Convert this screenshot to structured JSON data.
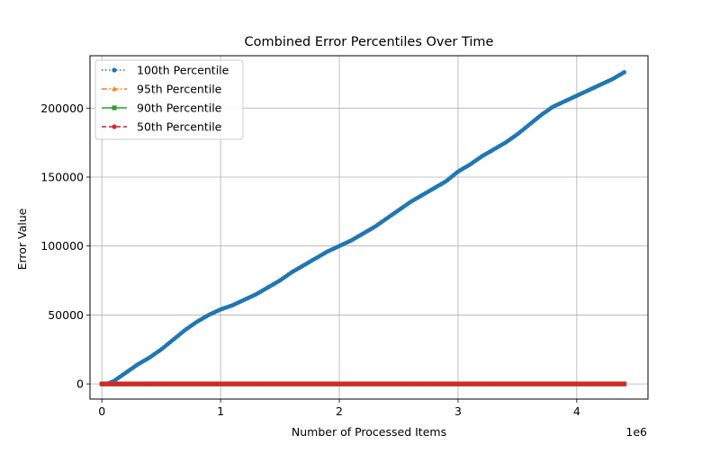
{
  "chart_data": {
    "type": "line",
    "title": "Combined Error Percentiles Over Time",
    "xlabel": "Number of Processed Items",
    "ylabel": "Error Value",
    "x_offset_label": "1e6",
    "xlim": [
      -0.1,
      4.6
    ],
    "ylim": [
      -11000,
      238000
    ],
    "xticks": [
      0,
      1,
      2,
      3,
      4
    ],
    "xtick_labels": [
      "0",
      "1",
      "2",
      "3",
      "4"
    ],
    "yticks": [
      0,
      50000,
      100000,
      150000,
      200000
    ],
    "ytick_labels": [
      "0",
      "50000",
      "100000",
      "150000",
      "200000"
    ],
    "grid": true,
    "legend_position": "top-left",
    "x_unit_multiplier": 1000000,
    "series": [
      {
        "name": "100th Percentile",
        "color": "#1f77b4",
        "linestyle": "dotted",
        "marker": "point",
        "x": [
          0.0,
          0.05,
          0.1,
          0.2,
          0.3,
          0.4,
          0.5,
          0.6,
          0.7,
          0.8,
          0.9,
          1.0,
          1.1,
          1.2,
          1.3,
          1.4,
          1.5,
          1.6,
          1.7,
          1.8,
          1.9,
          2.0,
          2.1,
          2.2,
          2.3,
          2.4,
          2.5,
          2.6,
          2.7,
          2.8,
          2.9,
          3.0,
          3.1,
          3.2,
          3.3,
          3.4,
          3.5,
          3.6,
          3.7,
          3.8,
          3.9,
          4.0,
          4.1,
          4.2,
          4.3,
          4.4
        ],
        "y": [
          0,
          300,
          2000,
          8000,
          14000,
          19000,
          25000,
          32000,
          39000,
          45000,
          50000,
          54000,
          57000,
          61000,
          65000,
          70000,
          75000,
          81000,
          86000,
          91000,
          96000,
          100000,
          104000,
          109000,
          114000,
          120000,
          126000,
          132000,
          137000,
          142000,
          147000,
          154000,
          159000,
          165000,
          170000,
          175000,
          181000,
          188000,
          195000,
          201000,
          205000,
          209000,
          213000,
          217000,
          221000,
          226000
        ]
      },
      {
        "name": "95th Percentile",
        "color": "#ff7f0e",
        "linestyle": "dashdot",
        "marker": "triangle",
        "x": [
          0.0,
          4.4
        ],
        "y": [
          0,
          0
        ]
      },
      {
        "name": "90th Percentile",
        "color": "#2ca02c",
        "linestyle": "solid",
        "marker": "square",
        "x": [
          0.0,
          4.4
        ],
        "y": [
          0,
          0
        ]
      },
      {
        "name": "50th Percentile",
        "color": "#d62728",
        "linestyle": "dashed",
        "marker": "circle",
        "x": [
          0.0,
          4.4
        ],
        "y": [
          0,
          0
        ]
      }
    ]
  }
}
